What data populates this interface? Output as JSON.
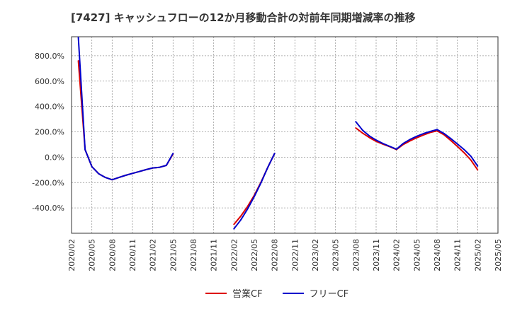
{
  "chart_data": {
    "type": "line",
    "title": "[7427]  キャッシュフローの12か月移動合計の対前年同期増減率の推移",
    "xlabel": "",
    "ylabel": "",
    "ylim": [
      -600,
      950
    ],
    "yticks": [
      800,
      600,
      400,
      200,
      0,
      -200,
      -400
    ],
    "ytick_labels": [
      "800.0%",
      "600.0%",
      "400.0%",
      "200.0%",
      "0.0%",
      "-200.0%",
      "-400.0%"
    ],
    "xlim": [
      "2020-02",
      "2025-05"
    ],
    "x_tick_labels": [
      "2020/02",
      "2020/05",
      "2020/08",
      "2020/11",
      "2021/02",
      "2021/05",
      "2021/08",
      "2021/11",
      "2022/02",
      "2022/05",
      "2022/08",
      "2022/11",
      "2023/02",
      "2023/05",
      "2023/08",
      "2023/11",
      "2024/02",
      "2024/05",
      "2024/08",
      "2024/11",
      "2025/02",
      "2025/05"
    ],
    "series": [
      {
        "name": "営業CF",
        "color": "#dd0000",
        "segments": [
          {
            "x": [
              "2020-03",
              "2020-04",
              "2020-05",
              "2020-06",
              "2020-07",
              "2020-08",
              "2020-09",
              "2020-10",
              "2020-11",
              "2020-12",
              "2021-01",
              "2021-02",
              "2021-03",
              "2021-04",
              "2021-05"
            ],
            "y": [
              760,
              60,
              -75,
              -130,
              -160,
              -178,
              -160,
              -143,
              -128,
              -113,
              -98,
              -85,
              -80,
              -65,
              25
            ]
          },
          {
            "x": [
              "2022-02",
              "2022-03",
              "2022-04",
              "2022-05",
              "2022-06",
              "2022-07",
              "2022-08"
            ],
            "y": [
              -530,
              -465,
              -390,
              -300,
              -195,
              -80,
              30
            ]
          },
          {
            "x": [
              "2023-08",
              "2023-09",
              "2023-10",
              "2023-11",
              "2023-12",
              "2024-01",
              "2024-02",
              "2024-03",
              "2024-04",
              "2024-05",
              "2024-06",
              "2024-07",
              "2024-08",
              "2024-09",
              "2024-10",
              "2024-11",
              "2024-12",
              "2025-01",
              "2025-02"
            ],
            "y": [
              230,
              190,
              155,
              125,
              103,
              83,
              60,
              100,
              128,
              153,
              175,
              195,
              208,
              178,
              133,
              85,
              35,
              -23,
              -100
            ]
          }
        ]
      },
      {
        "name": "フリーCF",
        "color": "#0000cc",
        "segments": [
          {
            "x": [
              "2020-03",
              "2020-04",
              "2020-05",
              "2020-06",
              "2020-07",
              "2020-08",
              "2020-09",
              "2020-10",
              "2020-11",
              "2020-12",
              "2021-01",
              "2021-02",
              "2021-03",
              "2021-04",
              "2021-05"
            ],
            "y": [
              945,
              60,
              -75,
              -130,
              -160,
              -178,
              -160,
              -143,
              -128,
              -113,
              -98,
              -85,
              -80,
              -65,
              30
            ]
          },
          {
            "x": [
              "2022-02",
              "2022-03",
              "2022-04",
              "2022-05",
              "2022-06",
              "2022-07",
              "2022-08"
            ],
            "y": [
              -565,
              -495,
              -410,
              -310,
              -200,
              -80,
              30
            ]
          },
          {
            "x": [
              "2023-08",
              "2023-09",
              "2023-10",
              "2023-11",
              "2023-12",
              "2024-01",
              "2024-02",
              "2024-03",
              "2024-04",
              "2024-05",
              "2024-06",
              "2024-07",
              "2024-08",
              "2024-09",
              "2024-10",
              "2024-11",
              "2024-12",
              "2025-01",
              "2025-02"
            ],
            "y": [
              280,
              213,
              168,
              135,
              108,
              86,
              63,
              108,
              140,
              165,
              186,
              203,
              218,
              188,
              148,
              105,
              60,
              7,
              -70
            ]
          }
        ]
      }
    ],
    "legend": [
      "営業CF",
      "フリーCF"
    ],
    "legend_position": "bottom",
    "grid": true
  }
}
